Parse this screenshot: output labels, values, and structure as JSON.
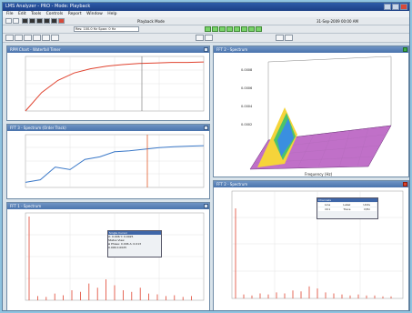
{
  "app": {
    "title": "LMS Analyzer - PRO - Mode: Playback"
  },
  "menu": [
    "File",
    "Edit",
    "Tools",
    "Controls",
    "Report",
    "Window",
    "Help"
  ],
  "toolbar": {
    "playback_label": "Playback Mode",
    "date": "31-Sep-2009 00:00 AM",
    "freq_readout": "Res: 100.0 Hz Span: 0 Hz"
  },
  "colors": {
    "accent": "#4a74ad",
    "trace_red": "#e0432f",
    "trace_blue": "#3a78c8",
    "cursor": "#e25b2b"
  },
  "panels": [
    {
      "id": "rpm",
      "title": "RPM Chart - Waterfall Timer"
    },
    {
      "id": "waterfall",
      "title": "FFT 2 - Spectrum"
    },
    {
      "id": "order",
      "title": "FFT 3 - Spectrum (Order Track)"
    },
    {
      "id": "spec_left",
      "title": "FFT 1 - Spectrum"
    },
    {
      "id": "spec_right",
      "title": "FFT 2 - Spectrum"
    }
  ],
  "icons": [
    "window-minimize-icon",
    "window-maximize-icon",
    "window-close-icon",
    "play-icon",
    "stop-icon",
    "record-icon",
    "rewind-icon",
    "forward-icon"
  ],
  "cursor_popup": {
    "title": "Single Cursor",
    "line1": "X: 0.006  Y: 0.0025",
    "line2": "Status View",
    "line3": "Δ Phase: 0.006  A: 0.013",
    "line4": "0.006  0.0025"
  },
  "legend_popup": {
    "title": "Channels",
    "r1c1": "Line",
    "r1c2": "Label",
    "r1c3": "Units",
    "r2c1": "Ch1",
    "r2c2": "Trace",
    "r2c3": "V/Hz"
  },
  "chart_data": [
    {
      "type": "line",
      "title": "RPM Chart - Waterfall Timer",
      "series": [
        {
          "values": [
            0,
            0.35,
            0.58,
            0.72,
            0.8,
            0.85,
            0.88,
            0.9,
            0.91,
            0.92,
            0.92,
            0.93
          ]
        }
      ]
    },
    {
      "type": "area",
      "title": "FFT 2 - Spectrum",
      "note": "3D waterfall spectrum, peak at low frequency"
    },
    {
      "type": "line",
      "title": "FFT 3 - Spectrum (Order Track)",
      "series": [
        {
          "values": [
            0.1,
            0.15,
            0.4,
            0.35,
            0.55,
            0.6,
            0.7,
            0.72,
            0.75,
            0.78,
            0.8,
            0.81,
            0.82
          ]
        }
      ]
    },
    {
      "type": "bar",
      "title": "FFT 1 - Spectrum",
      "series": [
        {
          "values": [
            1.0,
            0.05,
            0.04,
            0.08,
            0.06,
            0.12,
            0.1,
            0.2,
            0.15,
            0.25,
            0.18,
            0.12,
            0.1,
            0.15,
            0.08,
            0.07,
            0.05,
            0.06,
            0.04,
            0.05
          ]
        }
      ]
    },
    {
      "type": "bar",
      "title": "FFT 2 - Spectrum",
      "series": [
        {
          "values": [
            0.9,
            0.04,
            0.03,
            0.05,
            0.04,
            0.06,
            0.05,
            0.08,
            0.07,
            0.12,
            0.1,
            0.06,
            0.05,
            0.04,
            0.03,
            0.04,
            0.03,
            0.03,
            0.02,
            0.02
          ]
        }
      ]
    }
  ]
}
